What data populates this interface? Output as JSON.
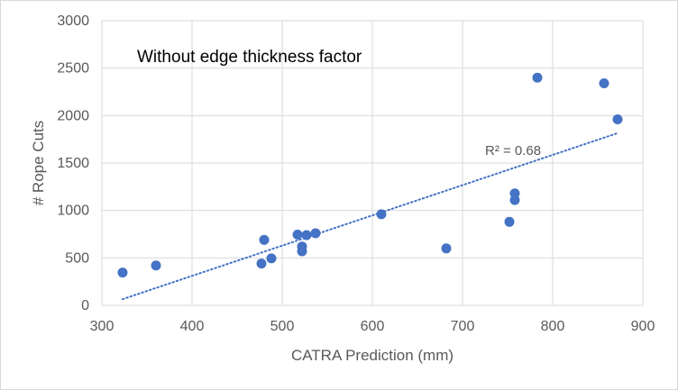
{
  "chart_data": {
    "type": "scatter",
    "title": "",
    "annotation": "Without edge thickness factor",
    "xlabel": "CATRA Prediction (mm)",
    "ylabel": "# Rope Cuts",
    "xlim": [
      300,
      900
    ],
    "ylim": [
      0,
      3000
    ],
    "x_ticks": [
      "300",
      "400",
      "500",
      "600",
      "700",
      "800",
      "900"
    ],
    "y_ticks": [
      "0",
      "500",
      "1000",
      "1500",
      "2000",
      "2500",
      "3000"
    ],
    "grid": true,
    "legend": "none",
    "series": [
      {
        "name": "Rope cuts",
        "color": "#4472c4",
        "points": [
          {
            "x": 323,
            "y": 345
          },
          {
            "x": 360,
            "y": 420
          },
          {
            "x": 477,
            "y": 440
          },
          {
            "x": 480,
            "y": 690
          },
          {
            "x": 488,
            "y": 495
          },
          {
            "x": 517,
            "y": 745
          },
          {
            "x": 522,
            "y": 620
          },
          {
            "x": 522,
            "y": 570
          },
          {
            "x": 527,
            "y": 740
          },
          {
            "x": 537,
            "y": 760
          },
          {
            "x": 610,
            "y": 960
          },
          {
            "x": 682,
            "y": 600
          },
          {
            "x": 752,
            "y": 880
          },
          {
            "x": 758,
            "y": 1180
          },
          {
            "x": 758,
            "y": 1110
          },
          {
            "x": 783,
            "y": 2400
          },
          {
            "x": 857,
            "y": 2340
          },
          {
            "x": 872,
            "y": 1960
          }
        ]
      }
    ],
    "trendline": {
      "type": "linear",
      "color": "#4472c4",
      "style": "dotted",
      "x_range": [
        323,
        872
      ],
      "y_range": [
        65,
        1815
      ],
      "label": "R² = 0.68"
    }
  }
}
